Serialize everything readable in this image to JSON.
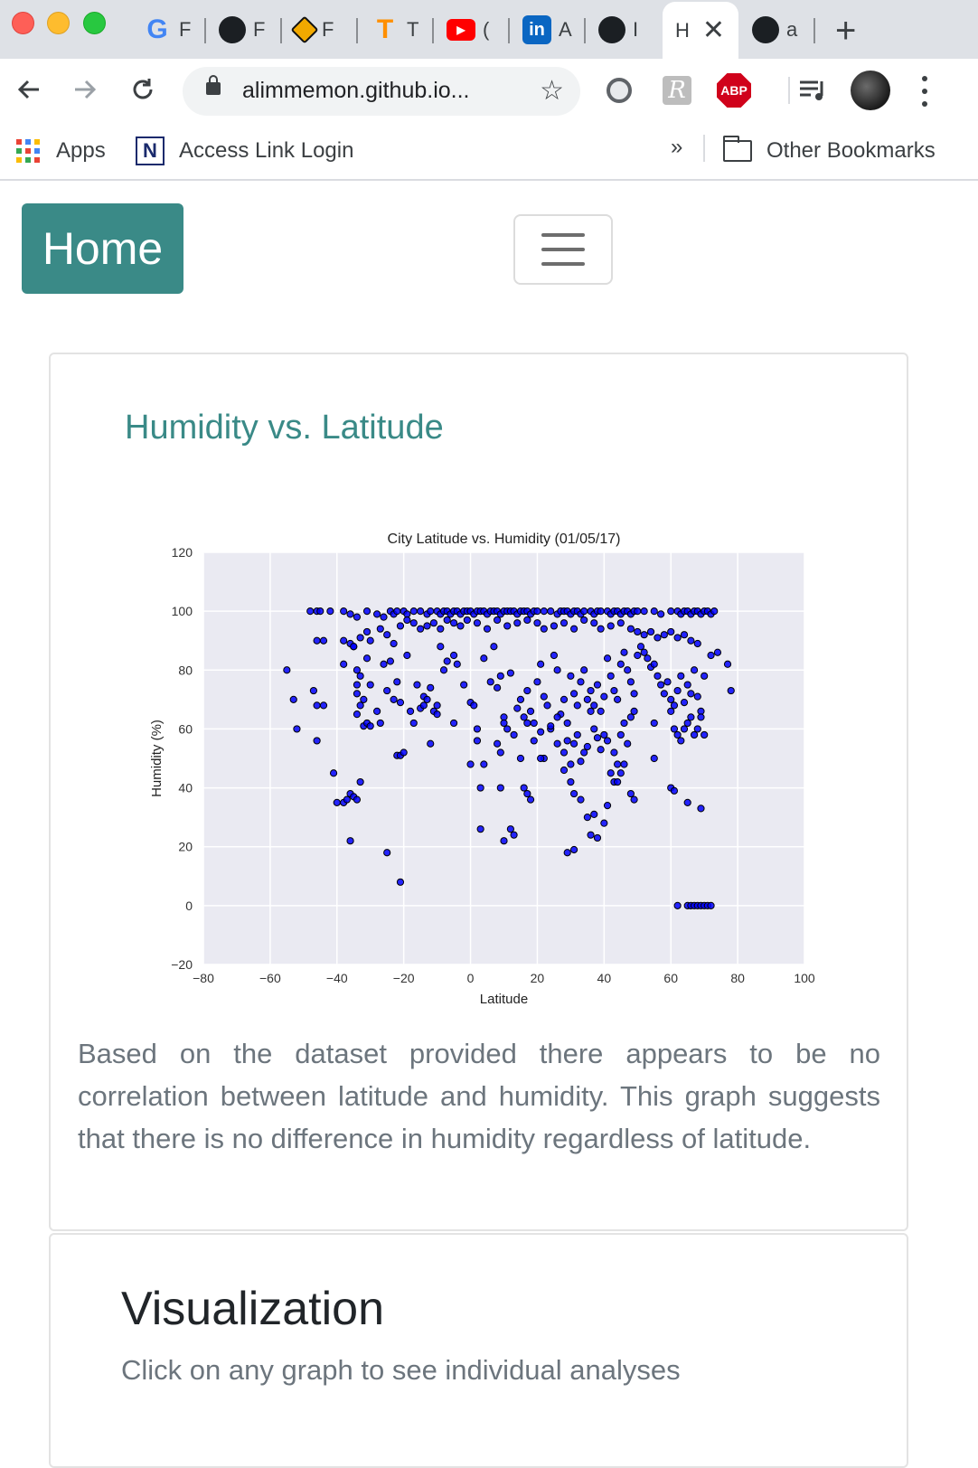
{
  "browser": {
    "tabs": [
      {
        "icon": "google-icon",
        "label": "F",
        "color": "#4285f4"
      },
      {
        "icon": "github-icon",
        "label": "F"
      },
      {
        "icon": "plotly-icon",
        "label": "F"
      },
      {
        "icon": "tensorflow-icon",
        "label": "T"
      },
      {
        "icon": "youtube-icon",
        "label": "("
      },
      {
        "icon": "linkedin-icon",
        "label": "A"
      },
      {
        "icon": "github-icon",
        "label": "I"
      },
      {
        "icon": "page-icon",
        "label": "H",
        "active": true
      },
      {
        "icon": "github-icon",
        "label": "a"
      }
    ],
    "url": "alimmemon.github.io...",
    "bookmarks": {
      "apps": "Apps",
      "access_link": "Access Link Login",
      "overflow": "»",
      "other": "Other Bookmarks"
    },
    "abp_label": "ABP"
  },
  "nav": {
    "home_label": "Home"
  },
  "card": {
    "title": "Humidity vs. Latitude",
    "description": "Based on the dataset provided there appears to be no correlation between latitude and humidity. This graph suggests that there is no difference in humidity regardless of latitude."
  },
  "visualization": {
    "title": "Visualization",
    "subtitle": "Click on any graph to see individual analyses"
  },
  "chart_data": {
    "type": "scatter",
    "title": "City Latitude vs. Humidity (01/05/17)",
    "xlabel": "Latitude",
    "ylabel": "Humidity (%)",
    "xlim": [
      -80,
      100
    ],
    "ylim": [
      -20,
      120
    ],
    "xticks": [
      -80,
      -60,
      -40,
      -20,
      0,
      20,
      40,
      60,
      80,
      100
    ],
    "yticks": [
      -20,
      0,
      20,
      40,
      60,
      80,
      100,
      120
    ],
    "grid": true,
    "marker_color": "#0000ff",
    "points": [
      [
        -46,
        100
      ],
      [
        -45,
        100
      ],
      [
        -42,
        100
      ],
      [
        -38,
        100
      ],
      [
        -36,
        99
      ],
      [
        -34,
        98
      ],
      [
        -31,
        100
      ],
      [
        -28,
        99
      ],
      [
        -26,
        98
      ],
      [
        -24,
        100
      ],
      [
        -23,
        99
      ],
      [
        -22,
        100
      ],
      [
        -20,
        100
      ],
      [
        -19,
        99
      ],
      [
        -17,
        100
      ],
      [
        -15,
        100
      ],
      [
        -13,
        99
      ],
      [
        -12,
        100
      ],
      [
        -10,
        100
      ],
      [
        -9,
        99
      ],
      [
        -8,
        100
      ],
      [
        -7,
        100
      ],
      [
        -6,
        99
      ],
      [
        -5,
        100
      ],
      [
        -4,
        100
      ],
      [
        -3,
        99
      ],
      [
        -2,
        100
      ],
      [
        -1,
        100
      ],
      [
        0,
        100
      ],
      [
        1,
        99
      ],
      [
        2,
        100
      ],
      [
        3,
        100
      ],
      [
        4,
        100
      ],
      [
        5,
        99
      ],
      [
        6,
        100
      ],
      [
        7,
        100
      ],
      [
        8,
        100
      ],
      [
        9,
        99
      ],
      [
        10,
        100
      ],
      [
        11,
        100
      ],
      [
        12,
        100
      ],
      [
        13,
        100
      ],
      [
        14,
        99
      ],
      [
        15,
        100
      ],
      [
        16,
        100
      ],
      [
        17,
        100
      ],
      [
        18,
        99
      ],
      [
        19,
        100
      ],
      [
        20,
        100
      ],
      [
        22,
        100
      ],
      [
        24,
        100
      ],
      [
        26,
        99
      ],
      [
        27,
        100
      ],
      [
        28,
        100
      ],
      [
        29,
        100
      ],
      [
        30,
        99
      ],
      [
        31,
        100
      ],
      [
        32,
        100
      ],
      [
        33,
        99
      ],
      [
        34,
        100
      ],
      [
        36,
        100
      ],
      [
        37,
        99
      ],
      [
        38,
        100
      ],
      [
        39,
        100
      ],
      [
        41,
        100
      ],
      [
        42,
        99
      ],
      [
        43,
        100
      ],
      [
        44,
        100
      ],
      [
        45,
        99
      ],
      [
        46,
        100
      ],
      [
        47,
        100
      ],
      [
        48,
        99
      ],
      [
        49,
        100
      ],
      [
        50,
        100
      ],
      [
        52,
        100
      ],
      [
        55,
        100
      ],
      [
        57,
        99
      ],
      [
        60,
        100
      ],
      [
        62,
        100
      ],
      [
        63,
        99
      ],
      [
        64,
        100
      ],
      [
        65,
        100
      ],
      [
        66,
        99
      ],
      [
        67,
        100
      ],
      [
        68,
        100
      ],
      [
        69,
        99
      ],
      [
        70,
        100
      ],
      [
        71,
        100
      ],
      [
        72,
        99
      ],
      [
        73,
        100
      ],
      [
        -38,
        90
      ],
      [
        -36,
        89
      ],
      [
        -35,
        88
      ],
      [
        -33,
        91
      ],
      [
        -31,
        93
      ],
      [
        -30,
        90
      ],
      [
        -27,
        94
      ],
      [
        -25,
        92
      ],
      [
        -23,
        89
      ],
      [
        -21,
        95
      ],
      [
        -19,
        97
      ],
      [
        -17,
        96
      ],
      [
        -15,
        94
      ],
      [
        -13,
        95
      ],
      [
        -11,
        96
      ],
      [
        -9,
        94
      ],
      [
        -7,
        97
      ],
      [
        -5,
        96
      ],
      [
        -3,
        95
      ],
      [
        -1,
        97
      ],
      [
        2,
        96
      ],
      [
        5,
        94
      ],
      [
        8,
        97
      ],
      [
        11,
        95
      ],
      [
        14,
        96
      ],
      [
        17,
        97
      ],
      [
        20,
        96
      ],
      [
        22,
        94
      ],
      [
        25,
        95
      ],
      [
        28,
        96
      ],
      [
        31,
        94
      ],
      [
        34,
        97
      ],
      [
        37,
        96
      ],
      [
        39,
        94
      ],
      [
        42,
        95
      ],
      [
        45,
        96
      ],
      [
        48,
        94
      ],
      [
        50,
        93
      ],
      [
        52,
        92
      ],
      [
        54,
        93
      ],
      [
        56,
        91
      ],
      [
        58,
        92
      ],
      [
        60,
        93
      ],
      [
        62,
        91
      ],
      [
        64,
        92
      ],
      [
        66,
        90
      ],
      [
        68,
        89
      ],
      [
        -48,
        100
      ],
      [
        -46,
        90
      ],
      [
        -44,
        90
      ],
      [
        -55,
        80
      ],
      [
        -53,
        70
      ],
      [
        -52,
        60
      ],
      [
        -47,
        73
      ],
      [
        -46,
        68
      ],
      [
        -46,
        56
      ],
      [
        -44,
        68
      ],
      [
        -38,
        82
      ],
      [
        -35,
        88
      ],
      [
        -34,
        80
      ],
      [
        -34,
        75
      ],
      [
        -34,
        72
      ],
      [
        -33,
        78
      ],
      [
        -32,
        70
      ],
      [
        -31,
        84
      ],
      [
        -30,
        75
      ],
      [
        -28,
        66
      ],
      [
        -27,
        62
      ],
      [
        -26,
        82
      ],
      [
        -25,
        73
      ],
      [
        -24,
        83
      ],
      [
        -23,
        70
      ],
      [
        -22,
        76
      ],
      [
        -21,
        69
      ],
      [
        -19,
        85
      ],
      [
        -18,
        66
      ],
      [
        -17,
        62
      ],
      [
        -16,
        75
      ],
      [
        -14,
        71
      ],
      [
        -13,
        70
      ],
      [
        -12,
        74
      ],
      [
        -11,
        66
      ],
      [
        -10,
        65
      ],
      [
        -9,
        88
      ],
      [
        -8,
        80
      ],
      [
        -7,
        83
      ],
      [
        -5,
        85
      ],
      [
        -4,
        82
      ],
      [
        -2,
        75
      ],
      [
        0,
        69
      ],
      [
        1,
        68
      ],
      [
        2,
        60
      ],
      [
        4,
        84
      ],
      [
        6,
        76
      ],
      [
        7,
        88
      ],
      [
        8,
        74
      ],
      [
        9,
        78
      ],
      [
        10,
        64
      ],
      [
        11,
        60
      ],
      [
        12,
        79
      ],
      [
        14,
        67
      ],
      [
        15,
        70
      ],
      [
        16,
        64
      ],
      [
        17,
        73
      ],
      [
        18,
        66
      ],
      [
        19,
        62
      ],
      [
        20,
        76
      ],
      [
        21,
        82
      ],
      [
        22,
        71
      ],
      [
        23,
        68
      ],
      [
        24,
        60
      ],
      [
        25,
        85
      ],
      [
        26,
        80
      ],
      [
        27,
        65
      ],
      [
        28,
        70
      ],
      [
        29,
        62
      ],
      [
        30,
        78
      ],
      [
        31,
        72
      ],
      [
        32,
        68
      ],
      [
        33,
        76
      ],
      [
        34,
        80
      ],
      [
        35,
        70
      ],
      [
        36,
        73
      ],
      [
        37,
        68
      ],
      [
        38,
        75
      ],
      [
        39,
        66
      ],
      [
        40,
        71
      ],
      [
        41,
        84
      ],
      [
        42,
        78
      ],
      [
        43,
        73
      ],
      [
        44,
        70
      ],
      [
        45,
        82
      ],
      [
        46,
        86
      ],
      [
        47,
        80
      ],
      [
        48,
        76
      ],
      [
        49,
        72
      ],
      [
        50,
        85
      ],
      [
        51,
        88
      ],
      [
        52,
        86
      ],
      [
        53,
        84
      ],
      [
        54,
        81
      ],
      [
        55,
        82
      ],
      [
        56,
        78
      ],
      [
        57,
        75
      ],
      [
        58,
        72
      ],
      [
        59,
        76
      ],
      [
        60,
        70
      ],
      [
        61,
        68
      ],
      [
        62,
        73
      ],
      [
        63,
        78
      ],
      [
        64,
        69
      ],
      [
        65,
        75
      ],
      [
        66,
        72
      ],
      [
        67,
        80
      ],
      [
        68,
        71
      ],
      [
        69,
        66
      ],
      [
        70,
        78
      ],
      [
        72,
        85
      ],
      [
        74,
        86
      ],
      [
        77,
        82
      ],
      [
        78,
        73
      ],
      [
        -34,
        65
      ],
      [
        -33,
        68
      ],
      [
        -32,
        61
      ],
      [
        -31,
        62
      ],
      [
        -30,
        61
      ],
      [
        -15,
        67
      ],
      [
        -14,
        68
      ],
      [
        -10,
        68
      ],
      [
        -5,
        62
      ],
      [
        2,
        56
      ],
      [
        4,
        48
      ],
      [
        8,
        55
      ],
      [
        9,
        52
      ],
      [
        10,
        62
      ],
      [
        13,
        58
      ],
      [
        15,
        50
      ],
      [
        17,
        62
      ],
      [
        19,
        56
      ],
      [
        21,
        59
      ],
      [
        22,
        50
      ],
      [
        24,
        61
      ],
      [
        26,
        64
      ],
      [
        28,
        52
      ],
      [
        29,
        56
      ],
      [
        30,
        48
      ],
      [
        31,
        55
      ],
      [
        32,
        58
      ],
      [
        33,
        49
      ],
      [
        34,
        52
      ],
      [
        35,
        54
      ],
      [
        36,
        66
      ],
      [
        37,
        60
      ],
      [
        38,
        57
      ],
      [
        39,
        53
      ],
      [
        40,
        58
      ],
      [
        41,
        56
      ],
      [
        42,
        45
      ],
      [
        43,
        52
      ],
      [
        44,
        48
      ],
      [
        45,
        58
      ],
      [
        46,
        62
      ],
      [
        47,
        55
      ],
      [
        48,
        64
      ],
      [
        49,
        66
      ],
      [
        55,
        62
      ],
      [
        60,
        66
      ],
      [
        61,
        60
      ],
      [
        62,
        58
      ],
      [
        63,
        56
      ],
      [
        64,
        60
      ],
      [
        65,
        62
      ],
      [
        66,
        64
      ],
      [
        67,
        58
      ],
      [
        68,
        60
      ],
      [
        69,
        64
      ],
      [
        70,
        58
      ],
      [
        -41,
        45
      ],
      [
        -40,
        35
      ],
      [
        -38,
        35
      ],
      [
        -37,
        36
      ],
      [
        -36,
        38
      ],
      [
        -35,
        37
      ],
      [
        -34,
        36
      ],
      [
        -33,
        42
      ],
      [
        -36,
        22
      ],
      [
        -25,
        18
      ],
      [
        -22,
        51
      ],
      [
        -21,
        51
      ],
      [
        -20,
        52
      ],
      [
        -12,
        55
      ],
      [
        0,
        48
      ],
      [
        3,
        40
      ],
      [
        9,
        40
      ],
      [
        16,
        40
      ],
      [
        17,
        38
      ],
      [
        18,
        36
      ],
      [
        21,
        50
      ],
      [
        26,
        55
      ],
      [
        28,
        46
      ],
      [
        30,
        42
      ],
      [
        31,
        38
      ],
      [
        33,
        36
      ],
      [
        35,
        30
      ],
      [
        36,
        24
      ],
      [
        37,
        31
      ],
      [
        38,
        23
      ],
      [
        40,
        28
      ],
      [
        41,
        34
      ],
      [
        43,
        42
      ],
      [
        44,
        42
      ],
      [
        45,
        45
      ],
      [
        46,
        48
      ],
      [
        48,
        38
      ],
      [
        49,
        36
      ],
      [
        55,
        50
      ],
      [
        60,
        40
      ],
      [
        61,
        39
      ],
      [
        65,
        35
      ],
      [
        69,
        33
      ],
      [
        3,
        26
      ],
      [
        10,
        22
      ],
      [
        12,
        26
      ],
      [
        13,
        24
      ],
      [
        29,
        18
      ],
      [
        31,
        19
      ],
      [
        -21,
        8
      ],
      [
        62,
        0
      ],
      [
        65,
        0
      ],
      [
        66,
        0
      ],
      [
        67,
        0
      ],
      [
        68,
        0
      ],
      [
        69,
        0
      ],
      [
        70,
        0
      ],
      [
        71,
        0
      ],
      [
        72,
        0
      ]
    ]
  }
}
